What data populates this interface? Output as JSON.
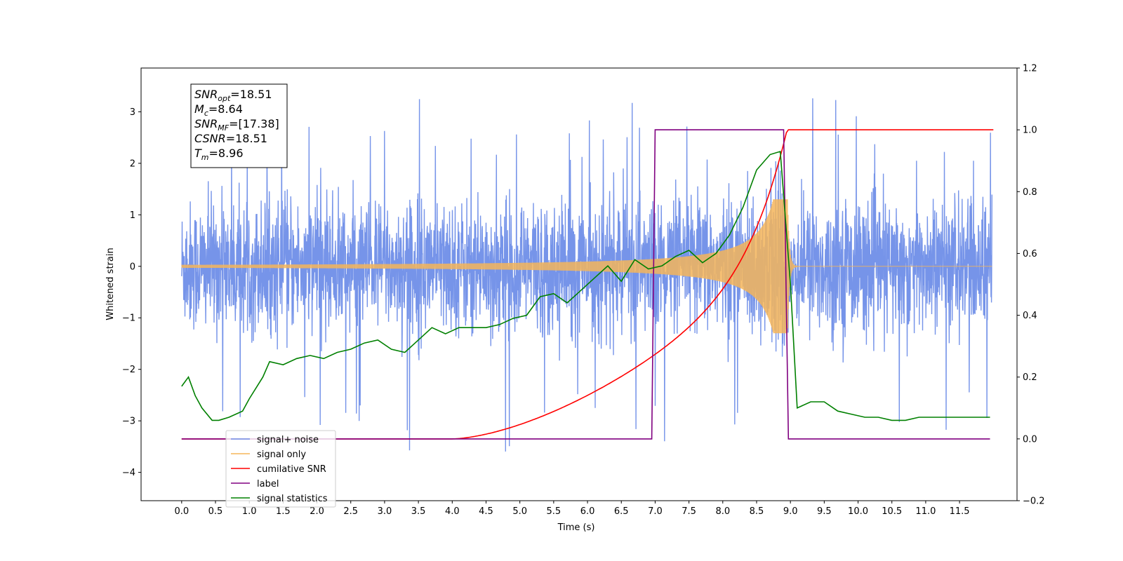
{
  "chart_data": {
    "type": "line",
    "xlabel": "Time (s)",
    "ylabel": "Whitened strain",
    "xlim": [
      -0.6,
      12.35
    ],
    "ylim": [
      -4.55,
      3.85
    ],
    "ylim_right": [
      -0.2,
      1.2
    ],
    "x_ticks": [
      "0.0",
      "0.5",
      "1.0",
      "1.5",
      "2.0",
      "2.5",
      "3.0",
      "3.5",
      "4.0",
      "4.5",
      "5.0",
      "5.5",
      "6.0",
      "6.5",
      "7.0",
      "7.5",
      "8.0",
      "8.5",
      "9.0",
      "9.5",
      "10.0",
      "10.5",
      "11.0",
      "11.5"
    ],
    "y_ticks_left": [
      "3",
      "2",
      "1",
      "0",
      "−1",
      "−2",
      "−3",
      "−4"
    ],
    "y_ticks_right": [
      "1.2",
      "1.0",
      "0.8",
      "0.6",
      "0.4",
      "0.2",
      "0.0",
      "−0.2"
    ],
    "grid": false,
    "legend_position": "lower-left",
    "annotation": [
      {
        "name": "SNR",
        "sub": "opt",
        "value": "=18.51"
      },
      {
        "name": "M",
        "sub": "c",
        "value": "=8.64"
      },
      {
        "name": "SNR",
        "sub": "MF",
        "value": "=[17.38]"
      },
      {
        "name": "CSNR",
        "sub": "",
        "value": "=18.51"
      },
      {
        "name": "T",
        "sub": "m",
        "value": "=8.96"
      }
    ],
    "series": [
      {
        "name": "signal+ noise",
        "axis": "left",
        "color": "#6f8ee8",
        "description": "noise band ~±1.7 with spikes to ~±3.5 across 0–12 s"
      },
      {
        "name": "signal only",
        "axis": "left",
        "color": "#f5b55a",
        "description": "chirp growing to ±1.3 peaking at ~8.96 s, ringdown after"
      },
      {
        "name": "cumilative SNR",
        "axis": "right",
        "color": "#ff0000",
        "points": [
          [
            0,
            0
          ],
          [
            4.0,
            0.0
          ],
          [
            4.5,
            0.005
          ],
          [
            5.0,
            0.03
          ],
          [
            5.5,
            0.08
          ],
          [
            6.0,
            0.14
          ],
          [
            6.5,
            0.19
          ],
          [
            7.0,
            0.26
          ],
          [
            7.5,
            0.33
          ],
          [
            8.0,
            0.44
          ],
          [
            8.5,
            0.62
          ],
          [
            8.8,
            0.8
          ],
          [
            8.95,
            1.0
          ],
          [
            12.0,
            1.0
          ]
        ]
      },
      {
        "name": "label",
        "axis": "right",
        "color": "#800080",
        "points": [
          [
            0,
            0
          ],
          [
            6.95,
            0
          ],
          [
            7.0,
            1.0
          ],
          [
            8.9,
            1.0
          ],
          [
            8.97,
            0
          ],
          [
            11.95,
            0
          ]
        ]
      },
      {
        "name": "signal statistics",
        "axis": "right",
        "color": "#008000",
        "points": [
          [
            0,
            0.17
          ],
          [
            0.1,
            0.2
          ],
          [
            0.2,
            0.14
          ],
          [
            0.3,
            0.1
          ],
          [
            0.45,
            0.06
          ],
          [
            0.55,
            0.06
          ],
          [
            0.7,
            0.07
          ],
          [
            0.9,
            0.09
          ],
          [
            1.0,
            0.13
          ],
          [
            1.2,
            0.2
          ],
          [
            1.3,
            0.25
          ],
          [
            1.5,
            0.24
          ],
          [
            1.7,
            0.26
          ],
          [
            1.9,
            0.27
          ],
          [
            2.1,
            0.26
          ],
          [
            2.3,
            0.28
          ],
          [
            2.5,
            0.29
          ],
          [
            2.7,
            0.31
          ],
          [
            2.9,
            0.32
          ],
          [
            3.1,
            0.29
          ],
          [
            3.3,
            0.28
          ],
          [
            3.5,
            0.32
          ],
          [
            3.7,
            0.36
          ],
          [
            3.9,
            0.34
          ],
          [
            4.1,
            0.36
          ],
          [
            4.3,
            0.36
          ],
          [
            4.5,
            0.36
          ],
          [
            4.7,
            0.37
          ],
          [
            4.9,
            0.39
          ],
          [
            5.1,
            0.4
          ],
          [
            5.3,
            0.46
          ],
          [
            5.5,
            0.47
          ],
          [
            5.7,
            0.44
          ],
          [
            5.9,
            0.48
          ],
          [
            6.1,
            0.52
          ],
          [
            6.3,
            0.56
          ],
          [
            6.5,
            0.51
          ],
          [
            6.7,
            0.58
          ],
          [
            6.9,
            0.55
          ],
          [
            7.1,
            0.56
          ],
          [
            7.3,
            0.59
          ],
          [
            7.5,
            0.61
          ],
          [
            7.7,
            0.57
          ],
          [
            7.9,
            0.6
          ],
          [
            8.1,
            0.66
          ],
          [
            8.3,
            0.75
          ],
          [
            8.5,
            0.87
          ],
          [
            8.7,
            0.92
          ],
          [
            8.85,
            0.93
          ],
          [
            9.0,
            0.5
          ],
          [
            9.1,
            0.1
          ],
          [
            9.3,
            0.12
          ],
          [
            9.5,
            0.12
          ],
          [
            9.7,
            0.09
          ],
          [
            9.9,
            0.08
          ],
          [
            10.1,
            0.07
          ],
          [
            10.3,
            0.07
          ],
          [
            10.5,
            0.06
          ],
          [
            10.7,
            0.06
          ],
          [
            10.9,
            0.07
          ],
          [
            11.1,
            0.07
          ],
          [
            11.3,
            0.07
          ],
          [
            11.5,
            0.07
          ],
          [
            11.7,
            0.07
          ],
          [
            11.95,
            0.07
          ]
        ]
      }
    ]
  },
  "colors": {
    "noise": "#6f8ee8",
    "signal": "#f5b55a",
    "cumsnr": "#ff0000",
    "label": "#800080",
    "stats": "#008000"
  }
}
